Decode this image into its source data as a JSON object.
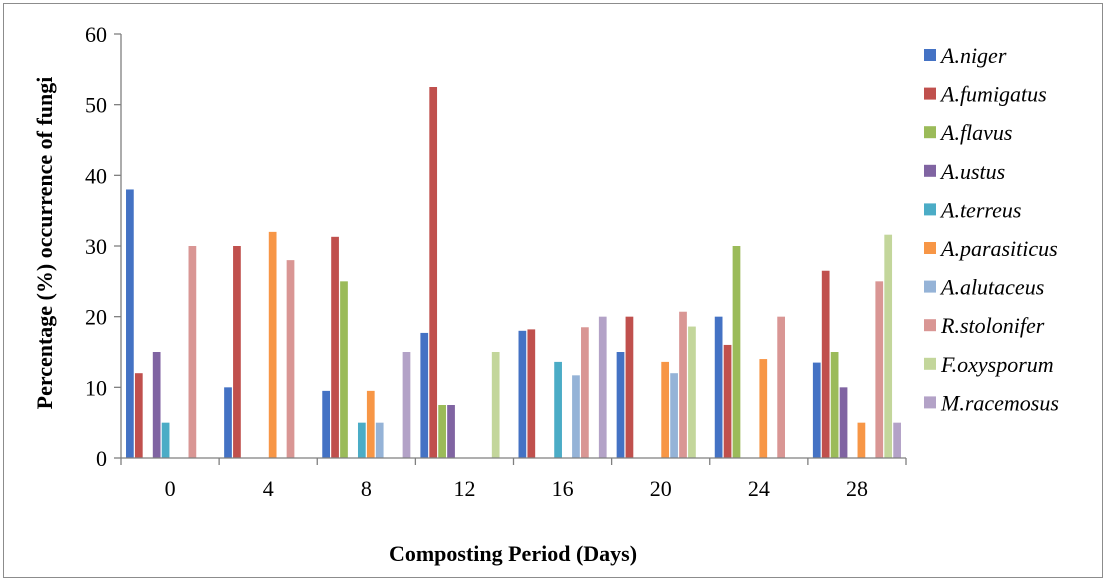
{
  "chart_data": {
    "type": "bar",
    "xlabel": "Composting Period (Days)",
    "ylabel": "Percentage (%) occurrence of fungi",
    "ylim": [
      0,
      60
    ],
    "yticks": [
      0,
      10,
      20,
      30,
      40,
      50,
      60
    ],
    "categories": [
      "0",
      "4",
      "8",
      "12",
      "16",
      "20",
      "24",
      "28"
    ],
    "legend_position": "right",
    "grid": false,
    "series": [
      {
        "name": "A.niger",
        "color": "#4472c4",
        "values": [
          38,
          10,
          9.5,
          17.7,
          18,
          15,
          20,
          13.5
        ]
      },
      {
        "name": "A.fumigatus",
        "color": "#c0504d",
        "values": [
          12,
          30,
          31.3,
          52.5,
          18.2,
          20,
          16,
          26.5
        ]
      },
      {
        "name": "A.flavus",
        "color": "#9bbb59",
        "values": [
          0,
          0,
          25,
          7.5,
          0,
          0,
          30,
          15
        ]
      },
      {
        "name": "A.ustus",
        "color": "#8064a2",
        "values": [
          15,
          0,
          0,
          7.5,
          0,
          0,
          0,
          10
        ]
      },
      {
        "name": "A.terreus",
        "color": "#4bacc6",
        "values": [
          5,
          0,
          5,
          0,
          13.6,
          0,
          0,
          0
        ]
      },
      {
        "name": "A.parasiticus",
        "color": "#f79646",
        "values": [
          0,
          32,
          9.5,
          0,
          0,
          13.6,
          14,
          5
        ]
      },
      {
        "name": "A.alutaceus",
        "color": "#95b3d7",
        "values": [
          0,
          0,
          5,
          0,
          11.7,
          12,
          0,
          0
        ]
      },
      {
        "name": "R.stolonifer",
        "color": "#d99694",
        "values": [
          30,
          28,
          0,
          0,
          18.5,
          20.7,
          20,
          25
        ]
      },
      {
        "name": "F.oxysporum",
        "color": "#c3d69b",
        "values": [
          0,
          0,
          0,
          15,
          0,
          18.6,
          0,
          31.6
        ]
      },
      {
        "name": "M.racemosus",
        "color": "#b3a2c7",
        "values": [
          0,
          0,
          15,
          0,
          20,
          0,
          0,
          5
        ]
      }
    ]
  }
}
